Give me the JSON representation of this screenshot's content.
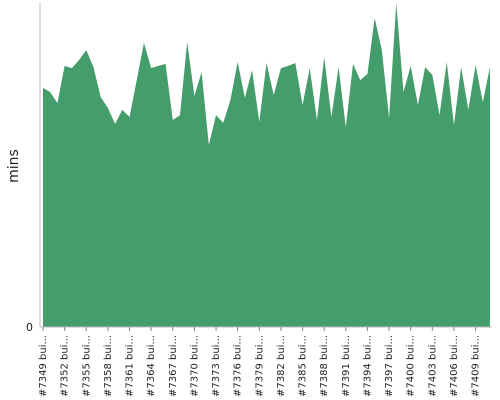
{
  "chart_data": {
    "type": "area",
    "color": "#459d6c",
    "ylabel": "mins",
    "ylim": [
      0,
      100
    ],
    "yticks": [
      0
    ],
    "categories": [
      "#7349 bui...",
      null,
      null,
      "#7352 bui...",
      null,
      null,
      "#7355 bui...",
      null,
      null,
      "#7358 bui...",
      null,
      null,
      "#7361 bui...",
      null,
      null,
      "#7364 bui...",
      null,
      null,
      "#7367 bui...",
      null,
      null,
      "#7370 bui...",
      null,
      null,
      "#7373 bui...",
      null,
      null,
      "#7376 bui...",
      null,
      null,
      "#7379 bui...",
      null,
      null,
      "#7382 bui...",
      null,
      null,
      "#7385 bui...",
      null,
      null,
      "#7388 bui...",
      null,
      null,
      "#7391 bui...",
      null,
      null,
      "#7394 bui...",
      null,
      null,
      "#7397 bui...",
      null,
      null,
      "#7400 bui...",
      null,
      null,
      "#7403 bui...",
      null,
      null,
      "#7406 bui...",
      null,
      null,
      "#7409 bui...",
      null,
      null
    ],
    "values": [
      73.8,
      72.5,
      69.1,
      80.6,
      79.9,
      82.4,
      85.5,
      80.2,
      71.0,
      67.6,
      62.7,
      67.0,
      64.8,
      76.2,
      87.7,
      79.9,
      80.6,
      81.2,
      63.9,
      65.4,
      88.0,
      71.3,
      78.7,
      56.2,
      65.4,
      63.0,
      70.1,
      81.8,
      70.7,
      79.3,
      63.3,
      81.5,
      71.6,
      79.9,
      80.6,
      81.5,
      68.5,
      79.9,
      63.9,
      83.3,
      64.8,
      80.2,
      61.7,
      81.2,
      76.2,
      78.1,
      95.4,
      85.5,
      64.5,
      100,
      72.5,
      80.6,
      68.5,
      80.2,
      77.8,
      65.4,
      81.8,
      62.3,
      80.2,
      67.0,
      80.9,
      69.4,
      80.2
    ]
  }
}
